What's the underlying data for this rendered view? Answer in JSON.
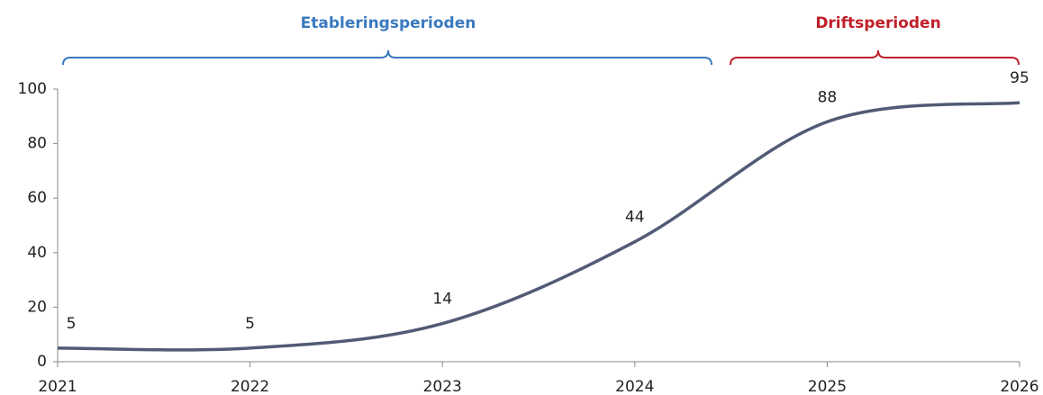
{
  "chart_data": {
    "type": "line",
    "annotations": [
      {
        "text": "Etableringsperioden",
        "color": "#3a7abf"
      },
      {
        "text": "Driftsperioden",
        "color": "#c0202a"
      }
    ],
    "x": [
      2021,
      2022,
      2023,
      2024,
      2025,
      2026
    ],
    "series": [
      {
        "color": "#515b75",
        "values": [
          5,
          5,
          14,
          44,
          88,
          95
        ]
      }
    ],
    "xlim": [
      2021,
      2026
    ],
    "xticks": [
      2021,
      2022,
      2023,
      2024,
      2025,
      2026
    ],
    "ylim": [
      0,
      100
    ],
    "yticks": [
      0,
      20,
      40,
      60,
      80,
      100
    ],
    "grid": false
  }
}
